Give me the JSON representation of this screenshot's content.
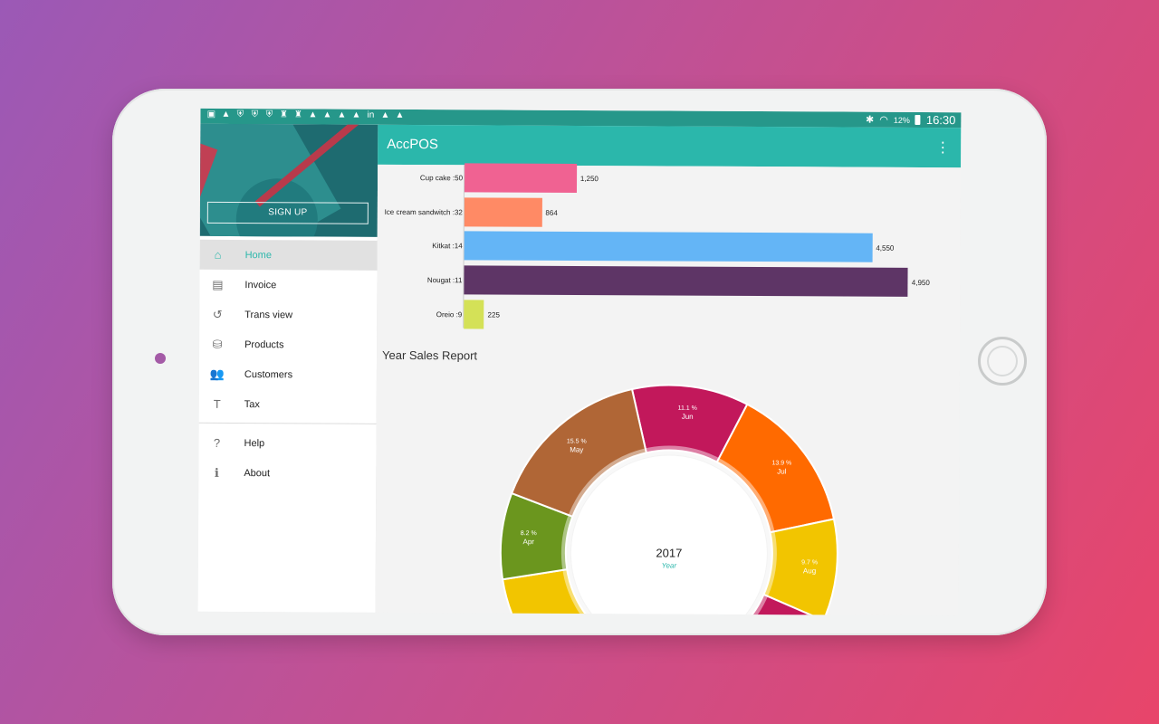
{
  "statusbar": {
    "left_icons": [
      "image-icon",
      "warning-icon",
      "shield-icon",
      "shield-icon",
      "shield-icon",
      "chess-icon",
      "chess-icon",
      "warning-icon",
      "warning-icon",
      "warning-icon",
      "warning-icon",
      "linkedin-icon",
      "warning-icon",
      "warning-icon"
    ],
    "battery": "12%",
    "time": "16:30"
  },
  "appbar": {
    "title": "AccPOS"
  },
  "drawer": {
    "signup_label": "SIGN UP",
    "items": [
      {
        "label": "Home",
        "icon": "home-icon",
        "active": true
      },
      {
        "label": "Invoice",
        "icon": "receipt-icon"
      },
      {
        "label": "Trans view",
        "icon": "history-icon"
      },
      {
        "label": "Products",
        "icon": "basket-icon"
      },
      {
        "label": "Customers",
        "icon": "people-icon"
      },
      {
        "label": "Tax",
        "icon": "tax-icon"
      }
    ],
    "secondary_items": [
      {
        "label": "Help",
        "icon": "help-icon"
      },
      {
        "label": "About",
        "icon": "info-icon"
      }
    ]
  },
  "content": {
    "report_title": "Year Sales Report"
  },
  "chart_data": [
    {
      "type": "bar",
      "orientation": "horizontal",
      "categories": [
        "Cup cake :50",
        "Ice cream sandwitch :32",
        "Kitkat :14",
        "Nougat :11",
        "Oreio :9"
      ],
      "values": [
        1250,
        864,
        4550,
        4950,
        225
      ],
      "value_labels": [
        "1,250",
        "864",
        "4,550",
        "4,950",
        "225"
      ],
      "colors": [
        "#f06292",
        "#ff8a65",
        "#64b5f6",
        "#5e3566",
        "#d4e157"
      ]
    },
    {
      "type": "pie",
      "style": "donut",
      "title": "Year Sales Report",
      "center_label": "2017",
      "center_sublabel": "Year",
      "slices": [
        {
          "label": "Jun",
          "percent": "11.1 %",
          "value": 11.1,
          "color": "#c2185b"
        },
        {
          "label": "Jul",
          "percent": "13.9 %",
          "value": 13.9,
          "color": "#ff6a00"
        },
        {
          "label": "Aug",
          "percent": "9.7 %",
          "value": 9.7,
          "color": "#f2c500"
        },
        {
          "label": "",
          "percent": "",
          "value": 6.0,
          "color": "#c2185b"
        },
        {
          "label": "",
          "percent": "",
          "value": 34.6,
          "color": "#f2c500"
        },
        {
          "label": "Apr",
          "percent": "8.2 %",
          "value": 8.2,
          "color": "#6b961e"
        },
        {
          "label": "May",
          "percent": "15.5 %",
          "value": 15.5,
          "color": "#b06636"
        }
      ]
    }
  ]
}
